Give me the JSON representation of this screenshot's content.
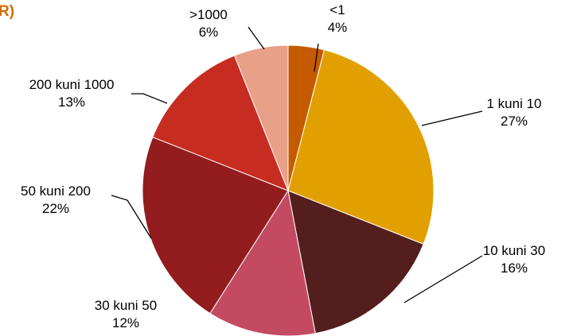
{
  "title_fragment": "R)",
  "colors": {
    "title_fragment": "#D46A00",
    "leader": "#000000"
  },
  "chart_data": {
    "type": "pie",
    "title": "",
    "slices": [
      {
        "label": "<1",
        "pct_label": "4%",
        "value": 4,
        "color": "#C55A00"
      },
      {
        "label": "1 kuni 10",
        "pct_label": "27%",
        "value": 27,
        "color": "#E2A000"
      },
      {
        "label": "10 kuni 30",
        "pct_label": "16%",
        "value": 16,
        "color": "#551E1E"
      },
      {
        "label": "30 kuni 50",
        "pct_label": "12%",
        "value": 12,
        "color": "#C44A62"
      },
      {
        "label": "50 kuni 200",
        "pct_label": "22%",
        "value": 22,
        "color": "#921C1E"
      },
      {
        "label": "200 kuni 1000",
        "pct_label": "13%",
        "value": 13,
        "color": "#C72C20"
      },
      {
        "label": ">1000",
        "pct_label": "6%",
        "value": 6,
        "color": "#E9A088"
      }
    ],
    "start_angle_deg": 0,
    "direction": "clockwise"
  }
}
